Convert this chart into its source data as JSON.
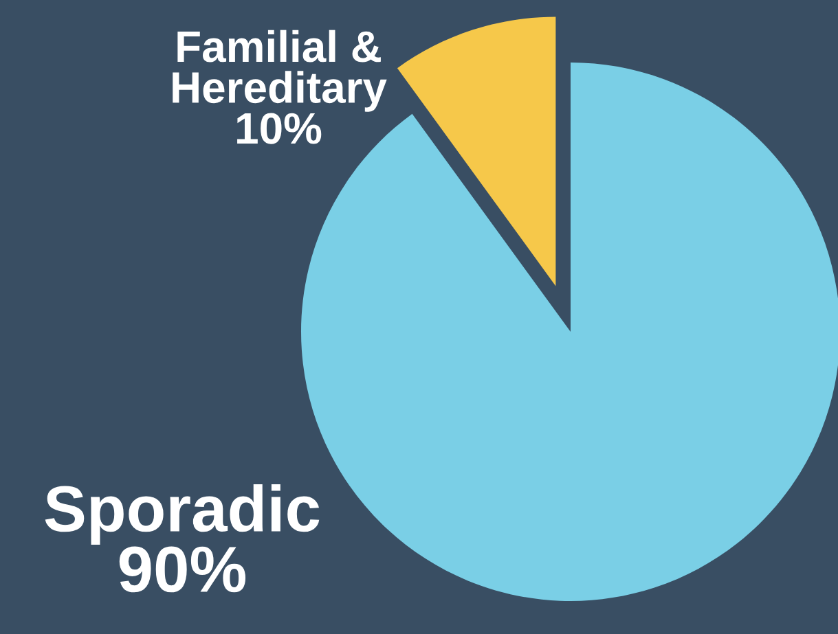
{
  "chart_data": {
    "type": "pie",
    "categories": [
      "Familial &\nHereditary",
      "Sporadic"
    ],
    "values": [
      10,
      90
    ],
    "colors": [
      "#f6c84a",
      "#7acfe6"
    ],
    "value_labels": [
      "10%",
      "90%"
    ],
    "legend": false
  }
}
